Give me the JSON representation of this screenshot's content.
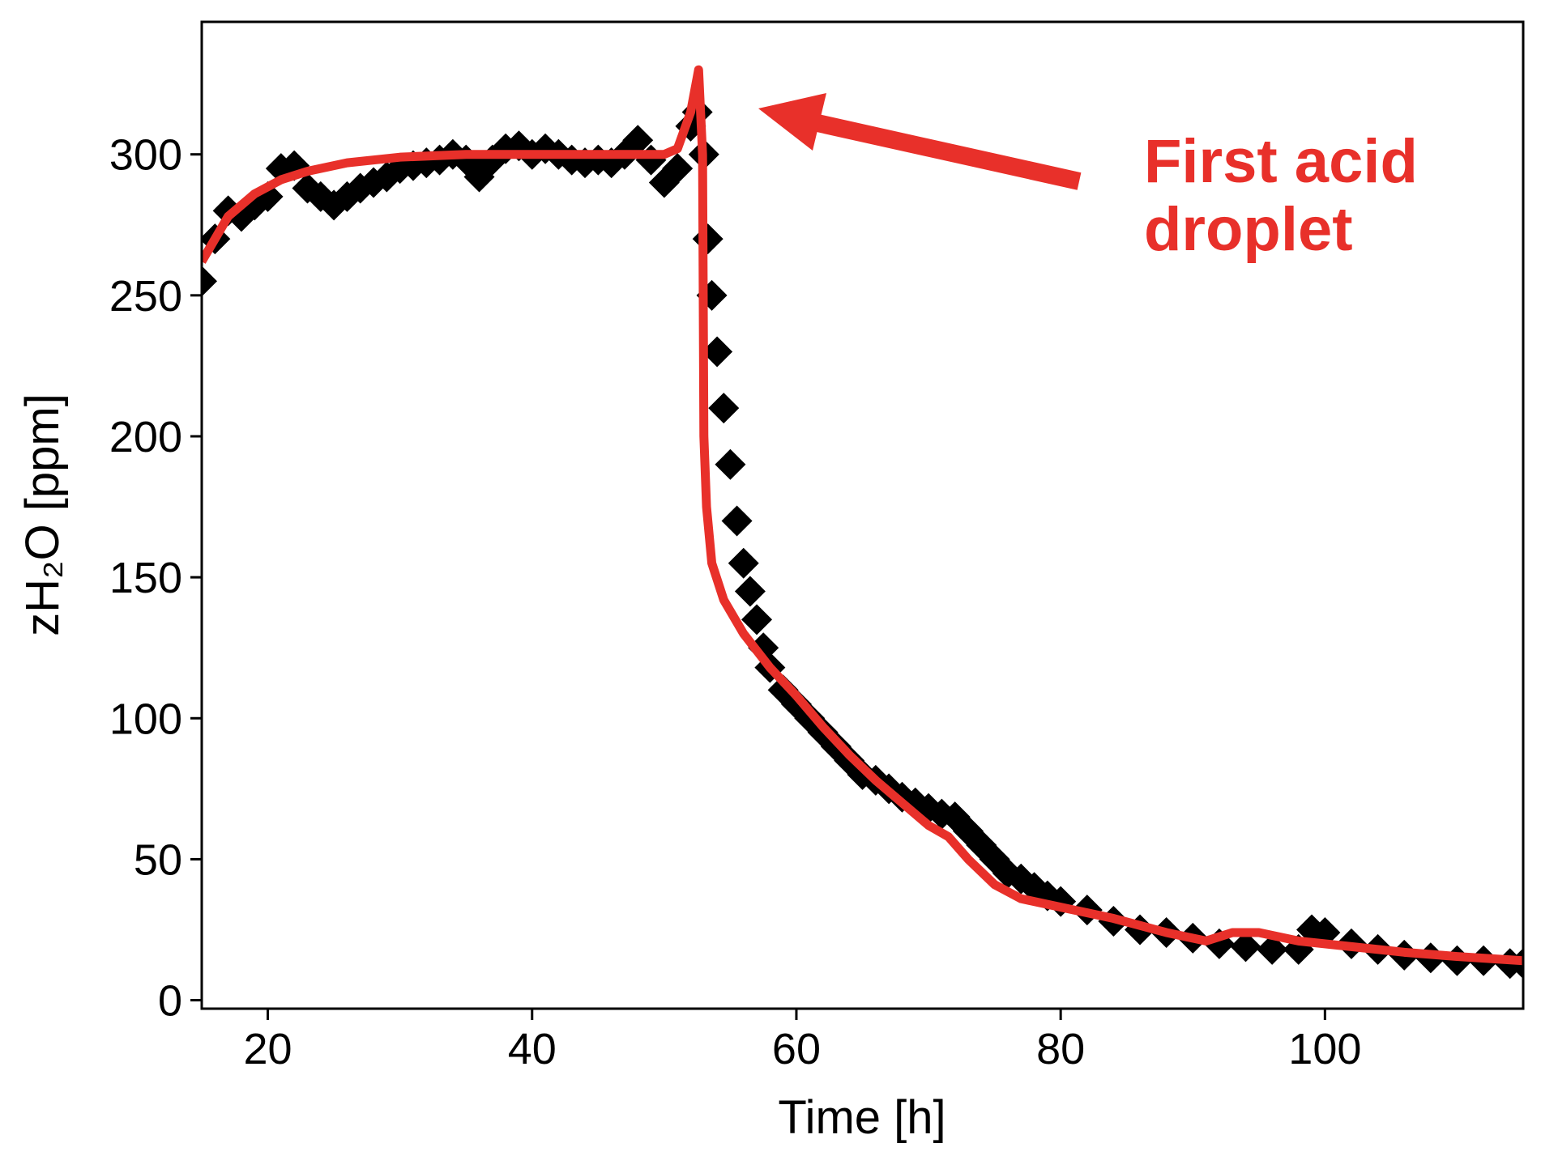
{
  "chart_data": {
    "type": "scatter",
    "xlabel": "Time [h]",
    "ylabel": "zH₂O [ppm]",
    "annotation": [
      "First acid",
      "droplet"
    ],
    "xlim": [
      15,
      115
    ],
    "xticks": [
      20,
      40,
      60,
      80,
      100
    ],
    "ylim": [
      -3,
      347
    ],
    "yticks": [
      0,
      50,
      100,
      150,
      200,
      250,
      300
    ],
    "series": [
      {
        "color": "#000000",
        "marker": "diamond",
        "x": [
          15,
          16,
          17,
          18,
          19,
          20,
          21,
          22,
          23,
          24,
          25,
          26,
          27,
          28,
          29,
          30,
          31,
          32,
          33,
          34,
          35,
          36,
          37,
          38,
          39,
          40,
          41,
          42,
          43,
          44,
          45,
          46,
          47,
          48,
          49,
          50,
          51,
          52,
          52.5,
          53,
          53.3,
          53.6,
          54,
          54.5,
          55,
          55.5,
          56,
          56.5,
          57,
          57.5,
          58,
          59,
          60,
          61,
          62,
          63,
          64,
          65,
          66,
          67,
          68,
          69,
          70,
          71,
          72,
          73,
          74,
          75,
          76,
          77,
          78,
          79,
          80,
          82,
          84,
          86,
          88,
          90,
          92,
          94,
          96,
          98,
          99,
          100,
          102,
          104,
          106,
          108,
          110,
          112,
          114,
          115
        ],
        "values": [
          255,
          270,
          280,
          278,
          282,
          285,
          295,
          296,
          288,
          285,
          282,
          285,
          288,
          290,
          292,
          295,
          296,
          297,
          298,
          300,
          298,
          292,
          298,
          302,
          303,
          300,
          302,
          300,
          298,
          297,
          298,
          297,
          300,
          305,
          298,
          290,
          295,
          310,
          315,
          300,
          270,
          250,
          230,
          210,
          190,
          170,
          155,
          145,
          135,
          125,
          118,
          110,
          105,
          100,
          95,
          90,
          85,
          80,
          78,
          75,
          72,
          70,
          68,
          66,
          65,
          60,
          55,
          50,
          45,
          43,
          40,
          37,
          35,
          32,
          28,
          25,
          24,
          22,
          20,
          19,
          18,
          18,
          25,
          24,
          20,
          18,
          16,
          15,
          14,
          14,
          13,
          13
        ]
      },
      {
        "color": "#e8302a",
        "marker": "line",
        "x": [
          15,
          17,
          19,
          21,
          23,
          26,
          30,
          35,
          40,
          45,
          50,
          51,
          52,
          52.6,
          52.9,
          53,
          53.2,
          53.6,
          54.5,
          56,
          58,
          60,
          62,
          64,
          66,
          68,
          70,
          71.5,
          73,
          75,
          77,
          80,
          84,
          88,
          91,
          93,
          95,
          98,
          102,
          106,
          110,
          115
        ],
        "values": [
          262,
          278,
          286,
          291,
          294,
          297,
          299,
          300,
          300,
          300,
          300,
          302,
          315,
          330,
          300,
          200,
          175,
          155,
          142,
          130,
          118,
          108,
          97,
          87,
          78,
          70,
          62,
          58,
          50,
          41,
          36,
          33,
          29,
          24,
          21,
          24,
          24,
          21,
          19,
          17,
          15.5,
          14
        ]
      }
    ]
  }
}
